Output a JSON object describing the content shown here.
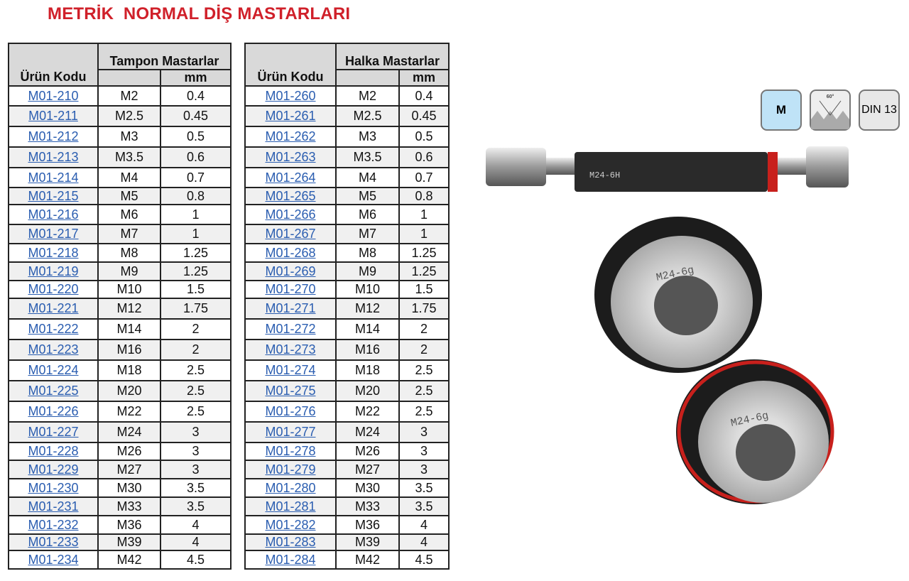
{
  "title": "METRİK  NORMAL DİŞ MASTARLARI",
  "tables": [
    {
      "group_header": "Tampon Mastarlar",
      "code_header": "Ürün Kodu",
      "unit_header": "mm",
      "rows": [
        [
          "M01-210",
          "M2",
          "0.4"
        ],
        [
          "M01-211",
          "M2.5",
          "0.45"
        ],
        [
          "M01-212",
          "M3",
          "0.5"
        ],
        [
          "M01-213",
          "M3.5",
          "0.6"
        ],
        [
          "M01-214",
          "M4",
          "0.7"
        ],
        [
          "M01-215",
          "M5",
          "0.8"
        ],
        [
          "M01-216",
          "M6",
          "1"
        ],
        [
          "M01-217",
          "M7",
          "1"
        ],
        [
          "M01-218",
          "M8",
          "1.25"
        ],
        [
          "M01-219",
          "M9",
          "1.25"
        ],
        [
          "M01-220",
          "M10",
          "1.5"
        ],
        [
          "M01-221",
          "M12",
          "1.75"
        ],
        [
          "M01-222",
          "M14",
          "2"
        ],
        [
          "M01-223",
          "M16",
          "2"
        ],
        [
          "M01-224",
          "M18",
          "2.5"
        ],
        [
          "M01-225",
          "M20",
          "2.5"
        ],
        [
          "M01-226",
          "M22",
          "2.5"
        ],
        [
          "M01-227",
          "M24",
          "3"
        ],
        [
          "M01-228",
          "M26",
          "3"
        ],
        [
          "M01-229",
          "M27",
          "3"
        ],
        [
          "M01-230",
          "M30",
          "3.5"
        ],
        [
          "M01-231",
          "M33",
          "3.5"
        ],
        [
          "M01-232",
          "M36",
          "4"
        ],
        [
          "M01-233",
          "M39",
          "4"
        ],
        [
          "M01-234",
          "M42",
          "4.5"
        ]
      ]
    },
    {
      "group_header": "Halka Mastarlar",
      "code_header": "Ürün Kodu",
      "unit_header": "mm",
      "rows": [
        [
          "M01-260",
          "M2",
          "0.4"
        ],
        [
          "M01-261",
          "M2.5",
          "0.45"
        ],
        [
          "M01-262",
          "M3",
          "0.5"
        ],
        [
          "M01-263",
          "M3.5",
          "0.6"
        ],
        [
          "M01-264",
          "M4",
          "0.7"
        ],
        [
          "M01-265",
          "M5",
          "0.8"
        ],
        [
          "M01-266",
          "M6",
          "1"
        ],
        [
          "M01-267",
          "M7",
          "1"
        ],
        [
          "M01-268",
          "M8",
          "1.25"
        ],
        [
          "M01-269",
          "M9",
          "1.25"
        ],
        [
          "M01-270",
          "M10",
          "1.5"
        ],
        [
          "M01-271",
          "M12",
          "1.75"
        ],
        [
          "M01-272",
          "M14",
          "2"
        ],
        [
          "M01-273",
          "M16",
          "2"
        ],
        [
          "M01-274",
          "M18",
          "2.5"
        ],
        [
          "M01-275",
          "M20",
          "2.5"
        ],
        [
          "M01-276",
          "M22",
          "2.5"
        ],
        [
          "M01-277",
          "M24",
          "3"
        ],
        [
          "M01-278",
          "M26",
          "3"
        ],
        [
          "M01-279",
          "M27",
          "3"
        ],
        [
          "M01-280",
          "M30",
          "3.5"
        ],
        [
          "M01-281",
          "M33",
          "3.5"
        ],
        [
          "M01-282",
          "M36",
          "4"
        ],
        [
          "M01-283",
          "M39",
          "4"
        ],
        [
          "M01-284",
          "M42",
          "4.5"
        ]
      ]
    }
  ],
  "badges": {
    "metric": "M",
    "thread_angle": "60°",
    "standard": "DIN 13",
    "metric_color": "#bfe3f7"
  },
  "images": {
    "plug_label": "M24-6H",
    "ring1_label": "M24-6g",
    "ring2_label": "M24-6g"
  }
}
